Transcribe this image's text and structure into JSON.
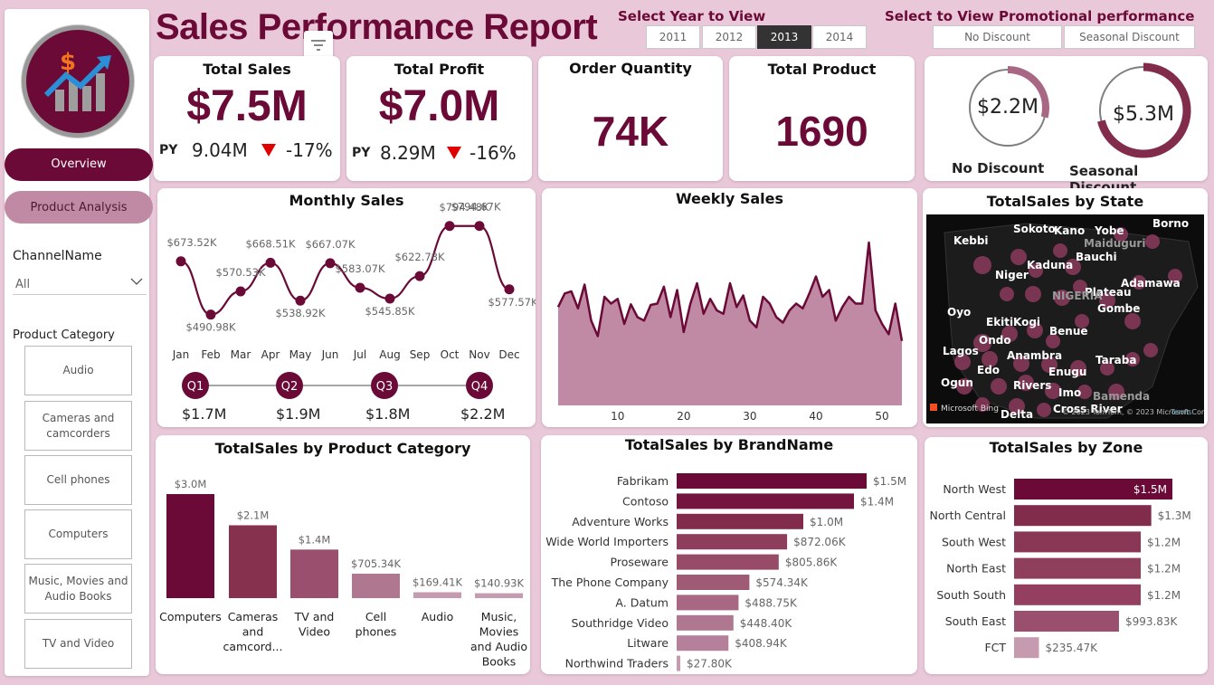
{
  "header": {
    "title": "Sales Performance Report",
    "year_label": "Select Year to View",
    "years": [
      "2011",
      "2012",
      "2013",
      "2014"
    ],
    "selected_year": "2013",
    "promo_label": "Select to View Promotional performance",
    "promos": [
      "No Discount",
      "Seasonal Discount"
    ]
  },
  "sidebar": {
    "nav": [
      "Overview",
      "Product Analysis"
    ],
    "channel_label": "ChannelName",
    "channel_value": "All",
    "category_label": "Product Category",
    "categories": [
      "Audio",
      "Cameras and camcorders",
      "Cell phones",
      "Computers",
      "Music, Movies and Audio Books",
      "TV and Video"
    ]
  },
  "kpis": {
    "total_sales": {
      "title": "Total Sales",
      "value": "$7.5M",
      "py_label": "PY",
      "py_value": "9.04M",
      "change": "-17%"
    },
    "total_profit": {
      "title": "Total Profit",
      "value": "$7.0M",
      "py_label": "PY",
      "py_value": "8.29M",
      "change": "-16%"
    },
    "order_quantity": {
      "title": "Order Quantity",
      "value": "74K"
    },
    "total_product": {
      "title": "Total Product",
      "value": "1690"
    },
    "no_discount": {
      "value": "$2.2M",
      "label": "No Discount",
      "fraction": 0.29
    },
    "seasonal_discount": {
      "value": "$5.3M",
      "label": "Seasonal Discount",
      "fraction": 0.71
    }
  },
  "monthly": {
    "title": "Monthly Sales",
    "quarters": [
      {
        "label": "Q1",
        "value": "$1.7M"
      },
      {
        "label": "Q2",
        "value": "$1.9M"
      },
      {
        "label": "Q3",
        "value": "$1.8M"
      },
      {
        "label": "Q4",
        "value": "$2.2M"
      }
    ]
  },
  "weekly": {
    "title": "Weekly Sales"
  },
  "map": {
    "title": "TotalSales by State",
    "states": [
      "Sokoto",
      "Kano",
      "Yobe",
      "Borno",
      "Kebbi",
      "Maiduguri",
      "Bauchi",
      "Kaduna",
      "Niger",
      "Adamawa",
      "Plateau",
      "NIGERIA",
      "Gombe",
      "Oyo",
      "Ekiti",
      "Kogi",
      "Ondo",
      "Benue",
      "Lagos",
      "Anambra",
      "Taraba",
      "Edo",
      "Enugu",
      "Ogun",
      "Rivers",
      "Imo",
      "Bamenda",
      "Delta",
      "Cross River"
    ],
    "attribution": "Microsoft Bing",
    "copyright": "© 2023 TomTom, © 2023 Microsoft Corporation",
    "terms": "Terms"
  },
  "category_chart": {
    "title": "TotalSales by Product Category"
  },
  "brand_chart": {
    "title": "TotalSales by BrandName"
  },
  "zone_chart": {
    "title": "TotalSales by Zone"
  },
  "chart_data": [
    {
      "type": "line",
      "title": "Monthly Sales",
      "categories": [
        "Jan",
        "Feb",
        "Mar",
        "Apr",
        "May",
        "Jun",
        "Jul",
        "Aug",
        "Sep",
        "Oct",
        "Nov",
        "Dec"
      ],
      "values": [
        673520,
        490980,
        570530,
        668510,
        538920,
        667070,
        583070,
        545850,
        622780,
        794480,
        794670,
        577570
      ],
      "labels": [
        "$673.52K",
        "$490.98K",
        "$570.53K",
        "$668.51K",
        "$538.92K",
        "$667.07K",
        "$583.07K",
        "$545.85K",
        "$622.78K",
        "$794.48K",
        "$794.67K",
        "$577.57K"
      ],
      "color": "#6b0a36"
    },
    {
      "type": "area",
      "title": "Weekly Sales",
      "x_ticks": [
        10,
        20,
        30,
        40,
        50
      ],
      "x": [
        1,
        2,
        3,
        4,
        5,
        6,
        7,
        8,
        9,
        10,
        11,
        12,
        13,
        14,
        15,
        16,
        17,
        18,
        19,
        20,
        21,
        22,
        23,
        24,
        25,
        26,
        27,
        28,
        29,
        30,
        31,
        32,
        33,
        34,
        35,
        36,
        37,
        38,
        39,
        40,
        41,
        42,
        43,
        44,
        45,
        46,
        47,
        48,
        49,
        50,
        51,
        52,
        53
      ],
      "values": [
        145,
        165,
        168,
        143,
        178,
        125,
        102,
        160,
        150,
        157,
        120,
        149,
        130,
        125,
        148,
        150,
        175,
        130,
        170,
        108,
        150,
        180,
        135,
        157,
        140,
        135,
        180,
        145,
        162,
        125,
        115,
        160,
        150,
        130,
        122,
        140,
        150,
        143,
        165,
        190,
        160,
        170,
        125,
        145,
        160,
        150,
        150,
        240,
        140,
        120,
        105,
        150,
        95
      ],
      "color": "#6b0a36",
      "fill": "#c08aa5"
    },
    {
      "type": "bar",
      "title": "TotalSales by Product Category",
      "categories": [
        "Computers",
        "Cameras and camcord...",
        "TV and Video",
        "Cell phones",
        "Audio",
        "Music, Movies and Audio Books"
      ],
      "values": [
        3000000,
        2100000,
        1400000,
        705340,
        169410,
        140930
      ],
      "labels": [
        "$3.0M",
        "$2.1M",
        "$1.4M",
        "$705.34K",
        "$169.41K",
        "$140.93K"
      ],
      "colors": [
        "#6b0a36",
        "#86324f",
        "#9b4f6e",
        "#b07791",
        "#c69bb0",
        "#c69bb0"
      ]
    },
    {
      "type": "bar",
      "orientation": "horizontal",
      "title": "TotalSales by BrandName",
      "categories": [
        "Fabrikam",
        "Contoso",
        "Adventure Works",
        "Wide World Importers",
        "Proseware",
        "The Phone Company",
        "A. Datum",
        "Southridge Video",
        "Litware",
        "Northwind Traders"
      ],
      "values": [
        1500000,
        1400000,
        1000000,
        872060,
        805860,
        574340,
        488750,
        448400,
        408940,
        27800
      ],
      "labels": [
        "$1.5M",
        "$1.4M",
        "$1.0M",
        "$872.06K",
        "$805.86K",
        "$574.34K",
        "$488.75K",
        "$448.40K",
        "$408.94K",
        "$27.80K"
      ],
      "colors": [
        "#6b0a36",
        "#74153f",
        "#822c4c",
        "#8e3d5b",
        "#974b66",
        "#a05b74",
        "#a86883",
        "#b07791",
        "#b5819a",
        "#c69bb0"
      ]
    },
    {
      "type": "bar",
      "orientation": "horizontal",
      "title": "TotalSales by Zone",
      "categories": [
        "North West",
        "North Central",
        "South West",
        "North East",
        "South South",
        "South East",
        "FCT"
      ],
      "values": [
        1500000,
        1300000,
        1200000,
        1200000,
        1200000,
        993830,
        235470
      ],
      "labels": [
        "$1.5M",
        "$1.3M",
        "$1.2M",
        "$1.2M",
        "$1.2M",
        "$993.83K",
        "$235.47K"
      ],
      "colors": [
        "#6b0a36",
        "#822c4c",
        "#8a3755",
        "#8f3e5b",
        "#943f5f",
        "#9b4f6e",
        "#c69bb0"
      ]
    }
  ]
}
